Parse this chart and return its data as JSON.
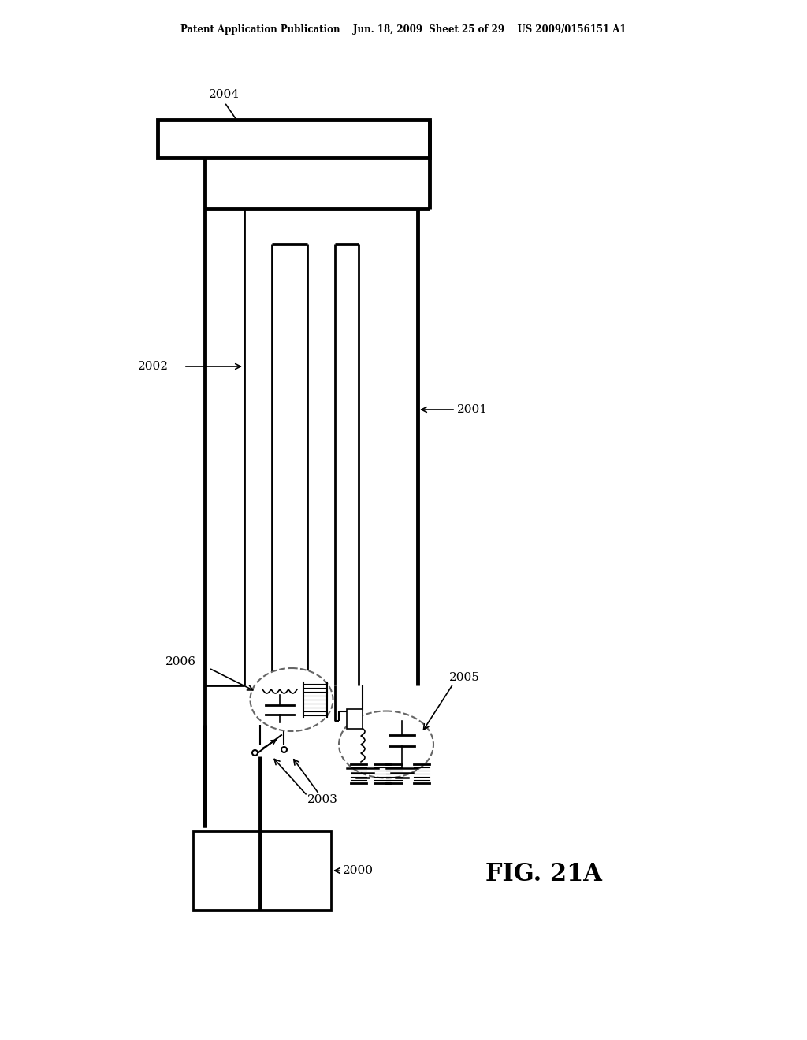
{
  "bg_color": "#ffffff",
  "header_text": "Patent Application Publication    Jun. 18, 2009  Sheet 25 of 29    US 2009/0156151 A1",
  "fig_label": "FIG. 21A",
  "lw_thick": 3.5,
  "lw_main": 2.0,
  "lw_thin": 1.5
}
